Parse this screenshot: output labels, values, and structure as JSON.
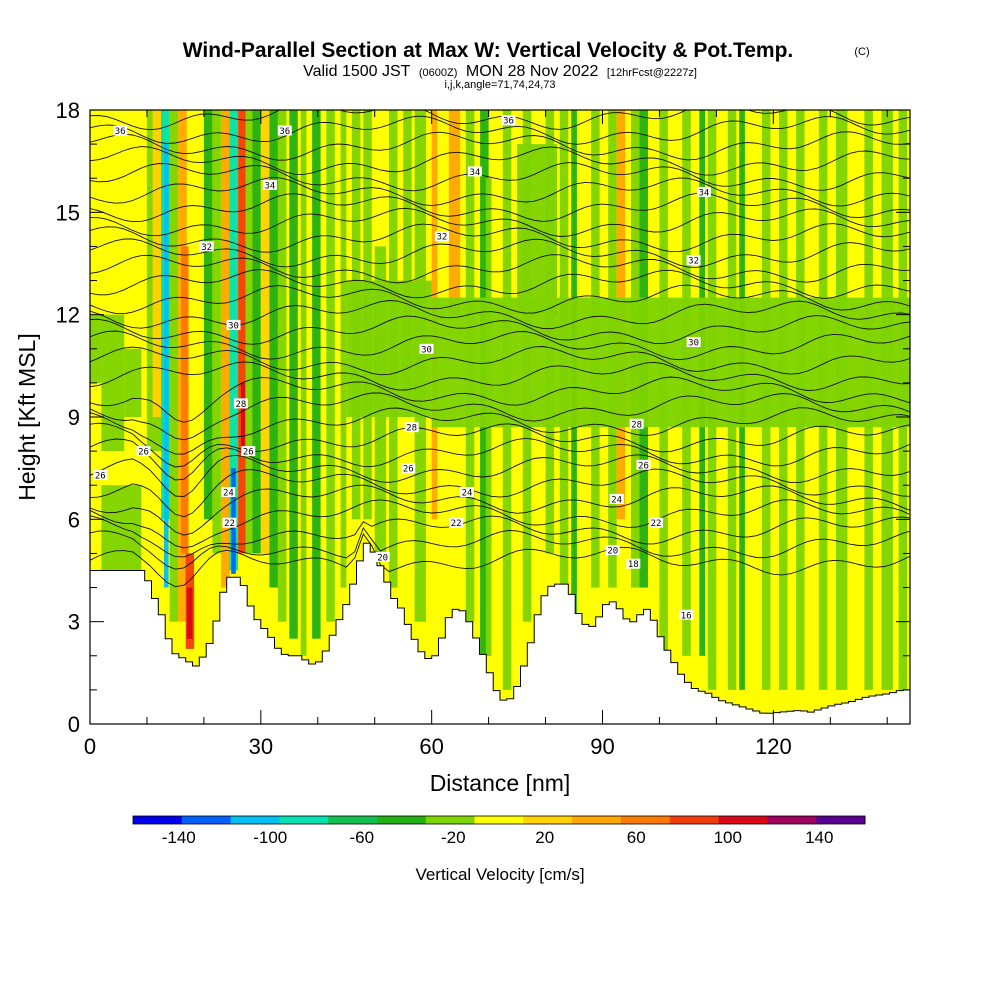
{
  "chart_data": {
    "type": "heatmap",
    "title": {
      "main": "Wind-Parallel Section at Max W: Vertical Velocity & Pot.Temp.",
      "copyright": "(C)",
      "valid_prefix": "Valid 1500 JST",
      "valid_utc": "(0600Z)",
      "valid_date": "MON 28 Nov 2022",
      "forecast": "[12hrFcst@2227z]",
      "indices": "i,j,k,angle=71,74,24,73"
    },
    "xlabel": "Distance [nm]",
    "ylabel": "Height [Kft MSL]",
    "xlim": [
      0,
      144
    ],
    "ylim": [
      0,
      18
    ],
    "x_ticks": [
      0,
      30,
      60,
      90,
      120
    ],
    "y_ticks": [
      0,
      3,
      6,
      9,
      12,
      15,
      18
    ],
    "colorbar": {
      "title": "Vertical Velocity [cm/s]",
      "bounds": [
        -160,
        160
      ],
      "colors": [
        "#0000ee",
        "#0060ff",
        "#00c0f0",
        "#00e0b0",
        "#10c050",
        "#22b012",
        "#7ed300",
        "#ffff00",
        "#ffd200",
        "#ffa600",
        "#ff7800",
        "#f23c0c",
        "#d80818",
        "#a00060",
        "#5a0090"
      ],
      "tick_labels": [
        "-140",
        "-100",
        "-60",
        "-20",
        "20",
        "60",
        "100",
        "140"
      ]
    },
    "contours": {
      "field": "Potential Temperature",
      "labels": [
        {
          "text": "36",
          "x": 5.3,
          "y": 17.4
        },
        {
          "text": "36",
          "x": 34.2,
          "y": 17.4
        },
        {
          "text": "36",
          "x": 73.5,
          "y": 17.7
        },
        {
          "text": "34",
          "x": 31.6,
          "y": 15.8
        },
        {
          "text": "34",
          "x": 67.6,
          "y": 16.2
        },
        {
          "text": "34",
          "x": 107.8,
          "y": 15.6
        },
        {
          "text": "32",
          "x": 20.5,
          "y": 14.0
        },
        {
          "text": "32",
          "x": 61.8,
          "y": 14.3
        },
        {
          "text": "32",
          "x": 106.0,
          "y": 13.6
        },
        {
          "text": "30",
          "x": 25.2,
          "y": 11.7
        },
        {
          "text": "30",
          "x": 59.1,
          "y": 11.0
        },
        {
          "text": "30",
          "x": 106.0,
          "y": 11.2
        },
        {
          "text": "28",
          "x": 26.5,
          "y": 9.4
        },
        {
          "text": "28",
          "x": 56.5,
          "y": 8.7
        },
        {
          "text": "28",
          "x": 96.0,
          "y": 8.8
        },
        {
          "text": "26",
          "x": 9.4,
          "y": 8.0
        },
        {
          "text": "26",
          "x": 27.8,
          "y": 8.0
        },
        {
          "text": "26",
          "x": 1.8,
          "y": 7.3
        },
        {
          "text": "26",
          "x": 55.9,
          "y": 7.5
        },
        {
          "text": "26",
          "x": 97.2,
          "y": 7.6
        },
        {
          "text": "24",
          "x": 24.3,
          "y": 6.8
        },
        {
          "text": "24",
          "x": 66.2,
          "y": 6.8
        },
        {
          "text": "24",
          "x": 92.5,
          "y": 6.6
        },
        {
          "text": "22",
          "x": 24.5,
          "y": 5.9
        },
        {
          "text": "22",
          "x": 64.3,
          "y": 5.9
        },
        {
          "text": "22",
          "x": 99.4,
          "y": 5.9
        },
        {
          "text": "20",
          "x": 51.4,
          "y": 4.9
        },
        {
          "text": "20",
          "x": 91.8,
          "y": 5.1
        },
        {
          "text": "18",
          "x": 95.4,
          "y": 4.7
        },
        {
          "text": "16",
          "x": 104.7,
          "y": 3.2
        }
      ]
    }
  }
}
